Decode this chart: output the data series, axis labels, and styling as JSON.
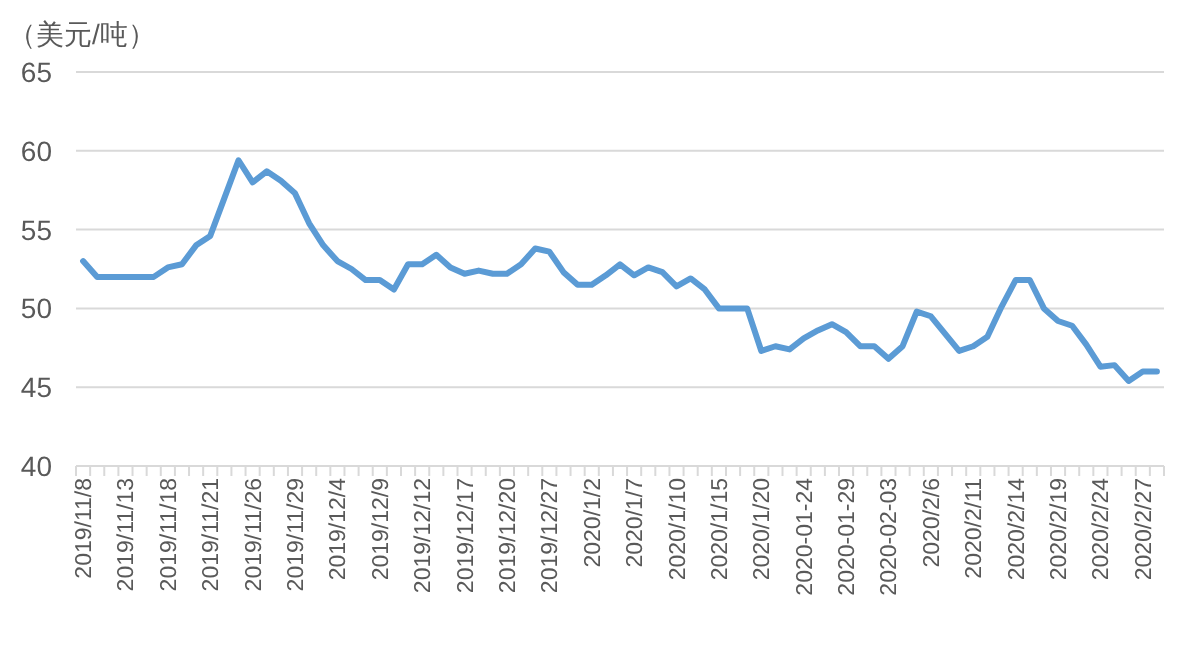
{
  "chart_data": {
    "type": "line",
    "ylabel": "（美元/吨）",
    "categories": [
      "2019/11/8",
      null,
      null,
      "2019/11/13",
      null,
      null,
      "2019/11/18",
      null,
      null,
      "2019/11/21",
      null,
      null,
      "2019/11/26",
      null,
      null,
      "2019/11/29",
      null,
      null,
      "2019/12/4",
      null,
      null,
      "2019/12/9",
      null,
      null,
      "2019/12/12",
      null,
      null,
      "2019/12/17",
      null,
      null,
      "2019/12/20",
      null,
      null,
      "2019/12/27",
      null,
      null,
      "2020/1/2",
      null,
      null,
      "2020/1/7",
      null,
      null,
      "2020/1/10",
      null,
      null,
      "2020/1/15",
      null,
      null,
      "2020/1/20",
      null,
      null,
      "2020-01-24",
      null,
      null,
      "2020-01-29",
      null,
      null,
      "2020-02-03",
      null,
      null,
      "2020/2/6",
      null,
      null,
      "2020/2/11",
      null,
      null,
      "2020/2/14",
      null,
      null,
      "2020/2/19",
      null,
      null,
      "2020/2/24",
      null,
      null,
      "2020/2/27",
      null
    ],
    "series": [
      {
        "color": "#5b9bd5",
        "values": [
          53.0,
          52.0,
          52.0,
          52.0,
          52.0,
          52.0,
          52.6,
          52.8,
          54.0,
          54.6,
          57.0,
          59.4,
          58.0,
          58.7,
          58.1,
          57.3,
          55.4,
          54.0,
          53.0,
          52.5,
          51.8,
          51.8,
          51.2,
          52.8,
          52.8,
          53.4,
          52.6,
          52.2,
          52.4,
          52.2,
          52.2,
          52.8,
          53.8,
          53.6,
          52.3,
          51.5,
          51.5,
          52.1,
          52.8,
          52.1,
          52.6,
          52.3,
          51.4,
          51.9,
          51.2,
          50.0,
          50.0,
          50.0,
          47.3,
          47.6,
          47.4,
          48.1,
          48.6,
          49.0,
          48.5,
          47.6,
          47.6,
          46.8,
          47.6,
          49.8,
          49.5,
          48.4,
          47.3,
          47.6,
          48.2,
          50.1,
          51.8,
          51.8,
          50.0,
          49.2,
          48.9,
          47.7,
          46.3,
          46.4,
          45.4,
          46.0,
          46.0
        ]
      }
    ],
    "ylim": [
      40,
      65
    ],
    "yticks": [
      40,
      45,
      50,
      55,
      60,
      65
    ],
    "grid": "y",
    "marker": "none",
    "line_style": "solid"
  }
}
